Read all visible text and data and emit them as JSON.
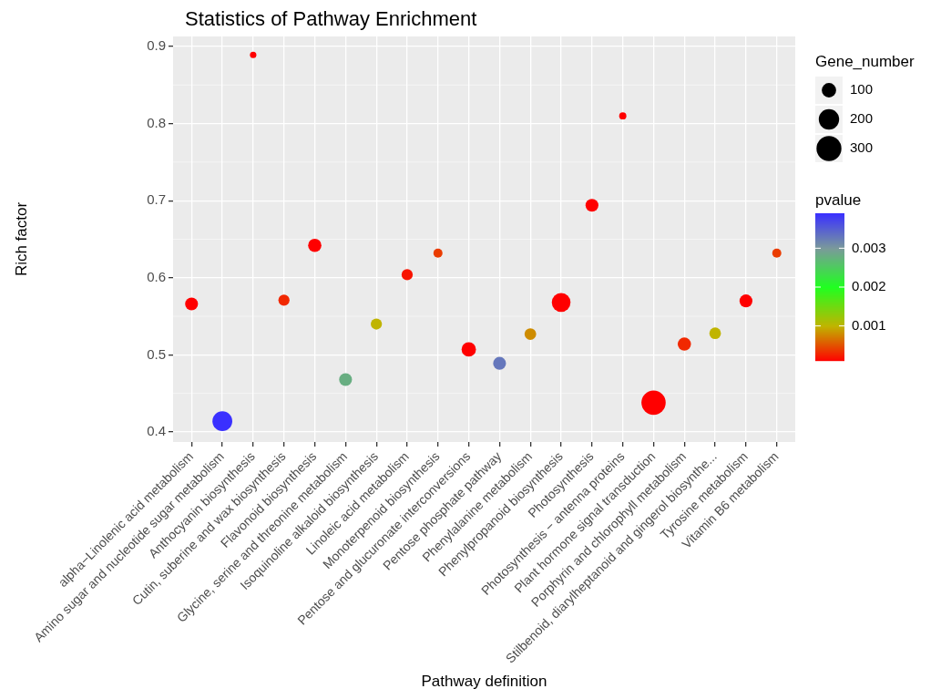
{
  "chart_data": {
    "type": "bubble",
    "title": "Statistics of Pathway Enrichment",
    "xlabel": "Pathway definition",
    "ylabel": "Rich factor",
    "legend_title": "Gene_number",
    "clabel": "pvalue",
    "categories": [
      "alpha−Linolenic acid metabolism",
      "Amino sugar and nucleotide sugar metabolism",
      "Anthocyanin biosynthesis",
      "Cutin, suberine and wax biosynthesis",
      "Flavonoid biosynthesis",
      "Glycine, serine and threonine metabolism",
      "Isoquinoline alkaloid biosynthesis",
      "Linoleic acid metabolism",
      "Monoterpenoid biosynthesis",
      "Pentose and glucuronate interconversions",
      "Pentose phosphate pathway",
      "Phenylalanine metabolism",
      "Phenylpropanoid biosynthesis",
      "Photosynthesis",
      "Photosynthesis − antenna proteins",
      "Plant hormone signal transduction",
      "Porphyrin and chlorophyll metabolism",
      "Stilbenoid, diarylheptanoid and gingerol biosynthe...",
      "Tyrosine metabolism",
      "Vitamin B6 metabolism"
    ],
    "values": [
      0.566,
      0.414,
      0.889,
      0.571,
      0.642,
      0.468,
      0.54,
      0.604,
      0.632,
      0.507,
      0.489,
      0.527,
      0.568,
      0.694,
      0.81,
      0.438,
      0.514,
      0.528,
      0.57,
      0.632
    ],
    "sizes": [
      80,
      190,
      20,
      60,
      85,
      80,
      60,
      60,
      40,
      100,
      80,
      65,
      170,
      80,
      25,
      285,
      85,
      65,
      80,
      40
    ],
    "size_legend": [
      100,
      200,
      300
    ],
    "cvalues": [
      0.0001,
      0.0039,
      0.0001,
      0.0003,
      0.0001,
      0.0028,
      0.001,
      0.0002,
      0.0004,
      0.0001,
      0.0033,
      0.0008,
      0.0001,
      0.0001,
      0.0001,
      0.0001,
      0.0003,
      0.001,
      0.0001,
      0.0004
    ],
    "clim": [
      0.0001,
      0.0039
    ],
    "cticks": [
      0.001,
      0.002,
      0.003
    ],
    "ylim": [
      0.387,
      0.913
    ],
    "yticks": [
      0.4,
      0.5,
      0.6,
      0.7,
      0.8,
      0.9
    ],
    "grid": true
  }
}
